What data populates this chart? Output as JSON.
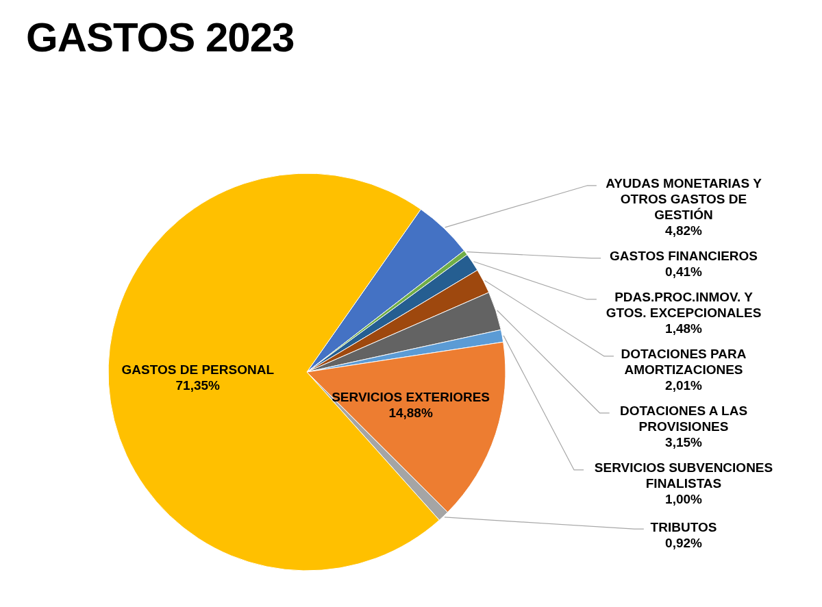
{
  "chart_data": {
    "type": "pie",
    "title": "GASTOS 2023",
    "categories": [
      "AYUDAS MONETARIAS Y OTROS GASTOS DE GESTIÓN",
      "GASTOS FINANCIEROS",
      "PDAS.PROC.INMOV. Y GTOS. EXCEPCIONALES",
      "DOTACIONES PARA AMORTIZACIONES",
      "DOTACIONES A LAS PROVISIONES",
      "SERVICIOS SUBVENCIONES FINALISTAS",
      "SERVICIOS EXTERIORES",
      "TRIBUTOS",
      "GASTOS DE PERSONAL"
    ],
    "values": [
      4.82,
      0.41,
      1.48,
      2.01,
      3.15,
      1.0,
      14.88,
      0.92,
      71.35
    ],
    "colors": [
      "#4472c4",
      "#70ad47",
      "#255e91",
      "#9e480e",
      "#636363",
      "#5b9bd5",
      "#ed7d31",
      "#a5a5a5",
      "#ffc000"
    ],
    "value_labels": [
      "4,82%",
      "0,41%",
      "1,48%",
      "2,01%",
      "3,15%",
      "1,00%",
      "14,88%",
      "0,92%",
      "71,35%"
    ]
  }
}
